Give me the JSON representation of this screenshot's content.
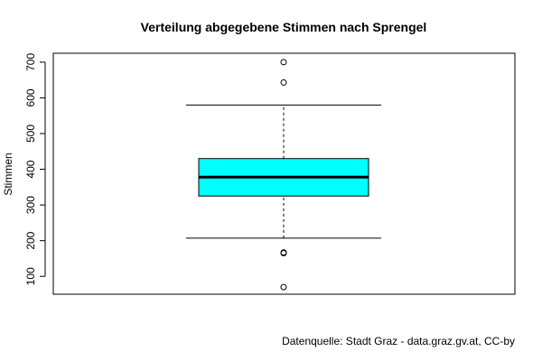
{
  "chart_data": {
    "type": "boxplot",
    "title": "Verteilung abgegebene Stimmen nach Sprengel",
    "xlabel": "",
    "ylabel": "Stimmen",
    "yticks": [
      100,
      200,
      300,
      400,
      500,
      600,
      700
    ],
    "ylim": [
      50,
      725
    ],
    "grid": false,
    "legend": "none",
    "box": {
      "q1": 325,
      "median": 378,
      "q3": 430,
      "whisker_low": 207,
      "whisker_high": 580,
      "outliers": [
        70,
        165,
        167,
        643,
        700
      ]
    },
    "fill_color": "#00FFFF",
    "caption": "Datenquelle: Stadt Graz - data.graz.gv.at, CC-by"
  }
}
